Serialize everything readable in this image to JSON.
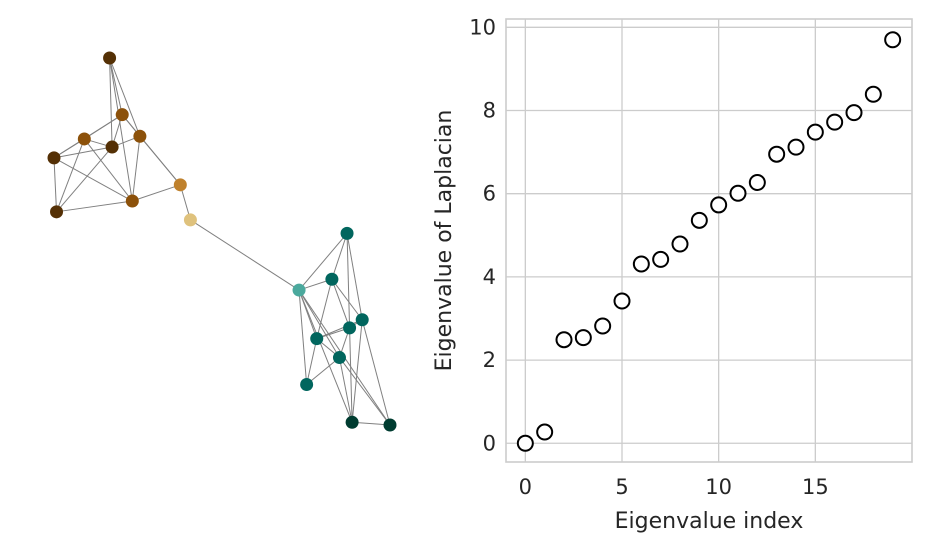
{
  "chart_data": [
    {
      "type": "network",
      "title": "",
      "colors": {
        "edge": "#808080",
        "brown_dark": "#543005",
        "brown": "#8c510a",
        "brown_light": "#bf812d",
        "tan": "#dfc27d",
        "teal_light": "#35978f",
        "teal_mid": "#4ba99d",
        "teal": "#01665e",
        "teal_dark": "#003c30"
      },
      "nodes": [
        {
          "id": 0,
          "x": -0.6,
          "y": 0.99,
          "color": "#543005"
        },
        {
          "id": 1,
          "x": -0.55,
          "y": 0.78,
          "color": "#8c510a"
        },
        {
          "id": 2,
          "x": -0.7,
          "y": 0.69,
          "color": "#8c510a"
        },
        {
          "id": 3,
          "x": -0.59,
          "y": 0.66,
          "color": "#543005"
        },
        {
          "id": 4,
          "x": -0.48,
          "y": 0.7,
          "color": "#8c510a"
        },
        {
          "id": 5,
          "x": -0.82,
          "y": 0.62,
          "color": "#543005"
        },
        {
          "id": 6,
          "x": -0.32,
          "y": 0.52,
          "color": "#bf812d"
        },
        {
          "id": 7,
          "x": -0.51,
          "y": 0.46,
          "color": "#8c510a"
        },
        {
          "id": 8,
          "x": -0.81,
          "y": 0.42,
          "color": "#543005"
        },
        {
          "id": 9,
          "x": -0.28,
          "y": 0.39,
          "color": "#dfc27d"
        },
        {
          "id": 10,
          "x": 0.15,
          "y": 0.13,
          "color": "#4ba99d"
        },
        {
          "id": 11,
          "x": 0.34,
          "y": 0.34,
          "color": "#01665e"
        },
        {
          "id": 12,
          "x": 0.28,
          "y": 0.17,
          "color": "#01665e"
        },
        {
          "id": 13,
          "x": 0.4,
          "y": 0.02,
          "color": "#01665e"
        },
        {
          "id": 14,
          "x": 0.35,
          "y": -0.01,
          "color": "#01665e"
        },
        {
          "id": 15,
          "x": 0.22,
          "y": -0.05,
          "color": "#01665e"
        },
        {
          "id": 16,
          "x": 0.31,
          "y": -0.12,
          "color": "#01665e"
        },
        {
          "id": 17,
          "x": 0.18,
          "y": -0.22,
          "color": "#01665e"
        },
        {
          "id": 18,
          "x": 0.36,
          "y": -0.36,
          "color": "#003c30"
        },
        {
          "id": 19,
          "x": 0.51,
          "y": -0.37,
          "color": "#003c30"
        }
      ],
      "edges": [
        [
          0,
          1
        ],
        [
          0,
          3
        ],
        [
          0,
          4
        ],
        [
          0,
          7
        ],
        [
          1,
          2
        ],
        [
          1,
          3
        ],
        [
          1,
          4
        ],
        [
          1,
          5
        ],
        [
          1,
          6
        ],
        [
          2,
          3
        ],
        [
          2,
          5
        ],
        [
          2,
          7
        ],
        [
          2,
          8
        ],
        [
          3,
          4
        ],
        [
          3,
          5
        ],
        [
          3,
          8
        ],
        [
          4,
          6
        ],
        [
          4,
          7
        ],
        [
          5,
          7
        ],
        [
          5,
          8
        ],
        [
          6,
          7
        ],
        [
          6,
          9
        ],
        [
          7,
          8
        ],
        [
          9,
          10
        ],
        [
          10,
          11
        ],
        [
          10,
          12
        ],
        [
          10,
          15
        ],
        [
          10,
          16
        ],
        [
          10,
          17
        ],
        [
          10,
          18
        ],
        [
          10,
          19
        ],
        [
          11,
          12
        ],
        [
          11,
          13
        ],
        [
          11,
          14
        ],
        [
          12,
          13
        ],
        [
          12,
          14
        ],
        [
          12,
          15
        ],
        [
          13,
          14
        ],
        [
          13,
          15
        ],
        [
          13,
          18
        ],
        [
          13,
          19
        ],
        [
          14,
          15
        ],
        [
          14,
          16
        ],
        [
          14,
          18
        ],
        [
          15,
          16
        ],
        [
          15,
          17
        ],
        [
          16,
          17
        ],
        [
          16,
          18
        ],
        [
          16,
          19
        ],
        [
          18,
          19
        ]
      ]
    },
    {
      "type": "scatter",
      "title": "",
      "xlabel": "Eigenvalue index",
      "ylabel": "Eigenvalue of Laplacian",
      "xlim": [
        -1,
        20
      ],
      "ylim": [
        -0.45,
        10.2
      ],
      "xticks": [
        0,
        5,
        10,
        15
      ],
      "yticks": [
        0,
        2,
        4,
        6,
        8,
        10
      ],
      "grid": true,
      "marker": "open-circle",
      "colors": {
        "grid": "#cccccc",
        "marker_edge": "#000000",
        "marker_face": "#ffffff",
        "spine": "#cccccc"
      },
      "x": [
        0,
        1,
        2,
        3,
        4,
        5,
        6,
        7,
        8,
        9,
        10,
        11,
        12,
        13,
        14,
        15,
        16,
        17,
        18,
        19
      ],
      "y": [
        0.0,
        0.27,
        2.49,
        2.54,
        2.82,
        3.42,
        4.31,
        4.42,
        4.79,
        5.36,
        5.73,
        6.01,
        6.27,
        6.95,
        7.12,
        7.48,
        7.72,
        7.95,
        8.39,
        9.7
      ]
    }
  ]
}
